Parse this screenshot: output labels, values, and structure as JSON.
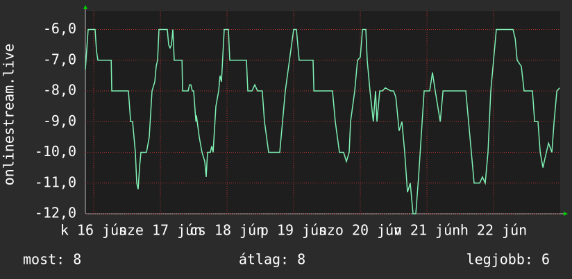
{
  "chart_data": {
    "type": "line",
    "y_label": "onlinestream.live",
    "xlim": [
      0,
      171
    ],
    "ylim": [
      -12,
      -5.4
    ],
    "xticks": [
      {
        "value": 3,
        "label": "k 16 jún"
      },
      {
        "value": 27,
        "label": "sze 17 jún"
      },
      {
        "value": 51,
        "label": "cs 18 jún"
      },
      {
        "value": 75,
        "label": "p 19 jún"
      },
      {
        "value": 99,
        "label": "szo 20 jún"
      },
      {
        "value": 123,
        "label": "v 21 jún"
      },
      {
        "value": 147,
        "label": "h 22 jún"
      }
    ],
    "yticks": [
      {
        "value": -12,
        "label": "-12,0"
      },
      {
        "value": -11,
        "label": "-11,0"
      },
      {
        "value": -10,
        "label": "-10,0"
      },
      {
        "value": -9,
        "label": "-9,0"
      },
      {
        "value": -8,
        "label": "-8,0"
      },
      {
        "value": -7,
        "label": "-7,0"
      },
      {
        "value": -6,
        "label": "-6,0"
      }
    ],
    "grid": true,
    "x": [
      0,
      1,
      3.5,
      4,
      4.5,
      9.3,
      9.5,
      15.5,
      16.3,
      17,
      18,
      18.5,
      19,
      19.5,
      20,
      22,
      23,
      24,
      25,
      25.5,
      26,
      26.5,
      29.5,
      30,
      30.5,
      31,
      31.5,
      32,
      34.8,
      35,
      37,
      37.5,
      38,
      38.5,
      39,
      39.8,
      40,
      41,
      42,
      43,
      43.5,
      44,
      45,
      45.5,
      46,
      47,
      48,
      48.5,
      49,
      50,
      51.5,
      52,
      58,
      58.5,
      60,
      61,
      62,
      63.7,
      64.5,
      66,
      70,
      71,
      72,
      73.5,
      75,
      76,
      77,
      82,
      82.3,
      89,
      90,
      91.5,
      93,
      94,
      95,
      95.5,
      97,
      98,
      99,
      99.8,
      101,
      101.5,
      102.5,
      103.7,
      104.5,
      105,
      106,
      107,
      108,
      110,
      111,
      111.8,
      113,
      114,
      115,
      116,
      117,
      118,
      119,
      120,
      122,
      124,
      125,
      126,
      127.8,
      128.8,
      137,
      138,
      139,
      140,
      142,
      143,
      144,
      145,
      146,
      147,
      148,
      154,
      154.8,
      155.5,
      157,
      158,
      161,
      161.8,
      163,
      163.8,
      164.8,
      165.5,
      166.8,
      168,
      168.8,
      169.8,
      170.8
    ],
    "series": [
      {
        "color": "#7ff0b4",
        "values": [
          -7.3,
          -6,
          -6,
          -6.7,
          -7,
          -7,
          -8,
          -8,
          -9,
          -9,
          -10,
          -11,
          -11.2,
          -10.5,
          -10,
          -10,
          -9.5,
          -8,
          -7.7,
          -7.2,
          -7,
          -6,
          -6,
          -6.5,
          -6.6,
          -6.5,
          -6,
          -7,
          -7,
          -8,
          -8,
          -7.8,
          -7.8,
          -8,
          -8,
          -9,
          -8.8,
          -9.5,
          -10,
          -10.3,
          -10.8,
          -10,
          -10,
          -9.8,
          -10,
          -8.5,
          -8,
          -7.5,
          -7.7,
          -6,
          -6,
          -7,
          -7,
          -8,
          -8,
          -7.8,
          -8,
          -8,
          -9,
          -10,
          -10,
          -9,
          -8,
          -7,
          -6,
          -6,
          -7,
          -7,
          -8,
          -8,
          -9,
          -10,
          -10,
          -10.3,
          -10,
          -9,
          -8,
          -7,
          -6.9,
          -6,
          -6,
          -7,
          -8,
          -9,
          -8,
          -9,
          -8,
          -8,
          -7.9,
          -8,
          -8,
          -8.2,
          -9.3,
          -9,
          -10,
          -11.3,
          -11,
          -12,
          -12,
          -10.8,
          -8,
          -8,
          -7.4,
          -8,
          -9,
          -8,
          -8,
          -9,
          -10,
          -11,
          -11,
          -10.8,
          -11,
          -10,
          -8,
          -7,
          -6,
          -6,
          -6.3,
          -7,
          -7.2,
          -8,
          -8,
          -9,
          -9,
          -10,
          -10.5,
          -10.2,
          -9.7,
          -10,
          -9,
          -8,
          -7.9
        ]
      }
    ],
    "annotations": [
      "most: 8",
      "átlag: 8",
      "legjobb: 6"
    ]
  }
}
